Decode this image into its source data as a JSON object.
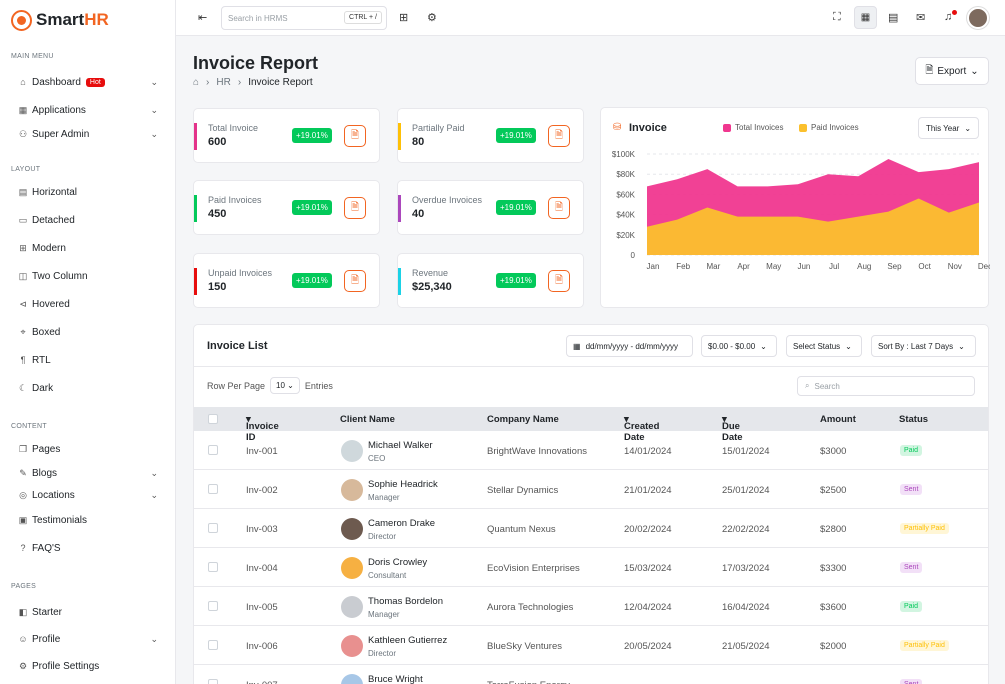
{
  "app": {
    "name_a": "Smart",
    "name_b": "HR"
  },
  "sidebar": {
    "main_menu": "MAIN MENU",
    "layout": "LAYOUT",
    "content": "CONTENT",
    "pages": "PAGES",
    "dashboard": "Dashboard",
    "hot": "Hot",
    "applications": "Applications",
    "super_admin": "Super Admin",
    "horizontal": "Horizontal",
    "detached": "Detached",
    "modern": "Modern",
    "two_column": "Two Column",
    "hovered": "Hovered",
    "boxed": "Boxed",
    "rtl": "RTL",
    "dark": "Dark",
    "pages_item": "Pages",
    "blogs": "Blogs",
    "locations": "Locations",
    "testimonials": "Testimonials",
    "faqs": "FAQ'S",
    "starter": "Starter",
    "profile": "Profile",
    "profile_settings": "Profile Settings"
  },
  "topbar": {
    "search_placeholder": "Search in HRMS",
    "shortcut": "CTRL + /"
  },
  "page": {
    "title": "Invoice Report",
    "crumb_hr": "HR",
    "crumb_current": "Invoice Report",
    "export": "Export"
  },
  "stats": [
    {
      "label": "Total Invoice",
      "value": "600",
      "change": "+19.01%",
      "color": "#e4338a"
    },
    {
      "label": "Partially Paid",
      "value": "80",
      "change": "+19.01%",
      "color": "#fec007"
    },
    {
      "label": "Paid Invoices",
      "value": "450",
      "change": "+19.01%",
      "color": "#03c95a"
    },
    {
      "label": "Overdue Invoices",
      "value": "40",
      "change": "+19.01%",
      "color": "#ab47bc"
    },
    {
      "label": "Unpaid Invoices",
      "value": "150",
      "change": "+19.01%",
      "color": "#e70d0d"
    },
    {
      "label": "Revenue",
      "value": "$25,340",
      "change": "+19.01%",
      "color": "#1bd2e6"
    }
  ],
  "chart_data": {
    "type": "area",
    "title": "Invoice",
    "period": "This Year",
    "categories": [
      "Jan",
      "Feb",
      "Mar",
      "Apr",
      "May",
      "Jun",
      "Jul",
      "Aug",
      "Sep",
      "Oct",
      "Nov",
      "Dec"
    ],
    "yticks": [
      "$100K",
      "$80K",
      "$60K",
      "$40K",
      "$20K",
      "0"
    ],
    "ylim": [
      0,
      100000
    ],
    "series": [
      {
        "name": "Total Invoices",
        "color": "#f0378f",
        "values": [
          68000,
          75000,
          85000,
          68000,
          68000,
          70000,
          80000,
          78000,
          95000,
          82000,
          85000,
          92000
        ]
      },
      {
        "name": "Paid Invoices",
        "color": "#fbc02d",
        "values": [
          28000,
          35000,
          47000,
          38000,
          38000,
          38000,
          33000,
          38000,
          43000,
          56000,
          42000,
          52000
        ]
      }
    ]
  },
  "list": {
    "title": "Invoice List",
    "date_range": "dd/mm/yyyy - dd/mm/yyyy",
    "amount_range": "$0.00 - $0.00",
    "status_filter": "Select Status",
    "sort": "Sort By : Last 7 Days",
    "rows_per_page": "Row Per Page",
    "rows_value": "10",
    "entries": "Entries",
    "search_placeholder": "Search",
    "headers": [
      "Invoice ID",
      "Client Name",
      "Company Name",
      "Created Date",
      "Due Date",
      "Amount",
      "Status"
    ],
    "rows": [
      {
        "id": "Inv-001",
        "name": "Michael Walker",
        "role": "CEO",
        "company": "BrightWave Innovations",
        "created": "14/01/2024",
        "due": "15/01/2024",
        "amount": "$3000",
        "status": "Paid"
      },
      {
        "id": "Inv-002",
        "name": "Sophie Headrick",
        "role": "Manager",
        "company": "Stellar Dynamics",
        "created": "21/01/2024",
        "due": "25/01/2024",
        "amount": "$2500",
        "status": "Sent"
      },
      {
        "id": "Inv-003",
        "name": "Cameron Drake",
        "role": "Director",
        "company": "Quantum Nexus",
        "created": "20/02/2024",
        "due": "22/02/2024",
        "amount": "$2800",
        "status": "Partially Paid"
      },
      {
        "id": "Inv-004",
        "name": "Doris Crowley",
        "role": "Consultant",
        "company": "EcoVision Enterprises",
        "created": "15/03/2024",
        "due": "17/03/2024",
        "amount": "$3300",
        "status": "Sent"
      },
      {
        "id": "Inv-005",
        "name": "Thomas Bordelon",
        "role": "Manager",
        "company": "Aurora Technologies",
        "created": "12/04/2024",
        "due": "16/04/2024",
        "amount": "$3600",
        "status": "Paid"
      },
      {
        "id": "Inv-006",
        "name": "Kathleen Gutierrez",
        "role": "Director",
        "company": "BlueSky Ventures",
        "created": "20/05/2024",
        "due": "21/05/2024",
        "amount": "$2000",
        "status": "Partially Paid"
      },
      {
        "id": "Inv-007",
        "name": "Bruce Wright",
        "role": "",
        "company": "TerraFusion Energy",
        "created": "",
        "due": "",
        "amount": "",
        "status": "Sent"
      }
    ]
  }
}
